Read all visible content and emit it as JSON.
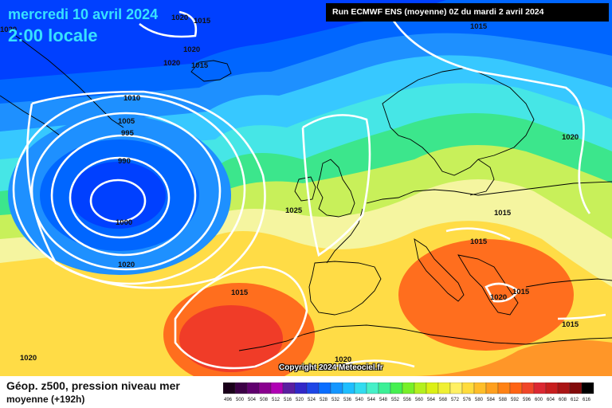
{
  "header": {
    "date": "mercredi 10 avril 2024",
    "time": "2:00 locale",
    "run_info": "Run ECMWF ENS (moyenne) 0Z du mardi 2 avril 2024"
  },
  "copyright": "Copyright 2024 Meteociel.fr",
  "footer": {
    "title": "Géop. z500, pression niveau mer",
    "subtitle": "moyenne  (+192h)"
  },
  "isobar_labels": [
    "1015",
    "1020",
    "1020",
    "1020",
    "1015",
    "1010",
    "1005",
    "995",
    "990",
    "1000",
    "1020",
    "1025",
    "1015",
    "1015",
    "1015",
    "1020",
    "1020",
    "1015",
    "1015",
    "1020",
    "1020",
    "1020",
    "1015"
  ],
  "color_scale": {
    "labels": [
      "496",
      "500",
      "504",
      "508",
      "512",
      "516",
      "520",
      "524",
      "528",
      "532",
      "536",
      "540",
      "544",
      "548",
      "552",
      "556",
      "560",
      "564",
      "568",
      "572",
      "576",
      "580",
      "584",
      "588",
      "592",
      "596",
      "600",
      "604",
      "608",
      "612",
      "616"
    ],
    "colors": [
      "#1a001a",
      "#3c0046",
      "#60006e",
      "#8a008f",
      "#b000b4",
      "#5a1ea0",
      "#3228c8",
      "#1e46e6",
      "#0a6eff",
      "#1496ff",
      "#1ebeff",
      "#32dcf0",
      "#46f0c8",
      "#3cf096",
      "#46f050",
      "#78f028",
      "#b4f01e",
      "#dcf014",
      "#f0f032",
      "#fff064",
      "#ffdc3c",
      "#ffbe28",
      "#ffa01e",
      "#ff8214",
      "#ff6414",
      "#f04628",
      "#dc2832",
      "#c81e1e",
      "#aa1414",
      "#820a0a",
      "#000000"
    ]
  },
  "map_colors": {
    "deep_blue": "#0040ff",
    "blue": "#0066ff",
    "light_blue": "#1e90ff",
    "cyan": "#37c8ff",
    "aqua": "#46e6e6",
    "green": "#3ce68c",
    "yellow_green": "#c8f05a",
    "pale_yellow": "#f5f5a0",
    "yellow": "#ffdc46",
    "orange": "#ff9628",
    "dark_orange": "#ff6e1e",
    "red": "#f03c28",
    "isobar": "#ffffff",
    "coastline": "#000000"
  }
}
